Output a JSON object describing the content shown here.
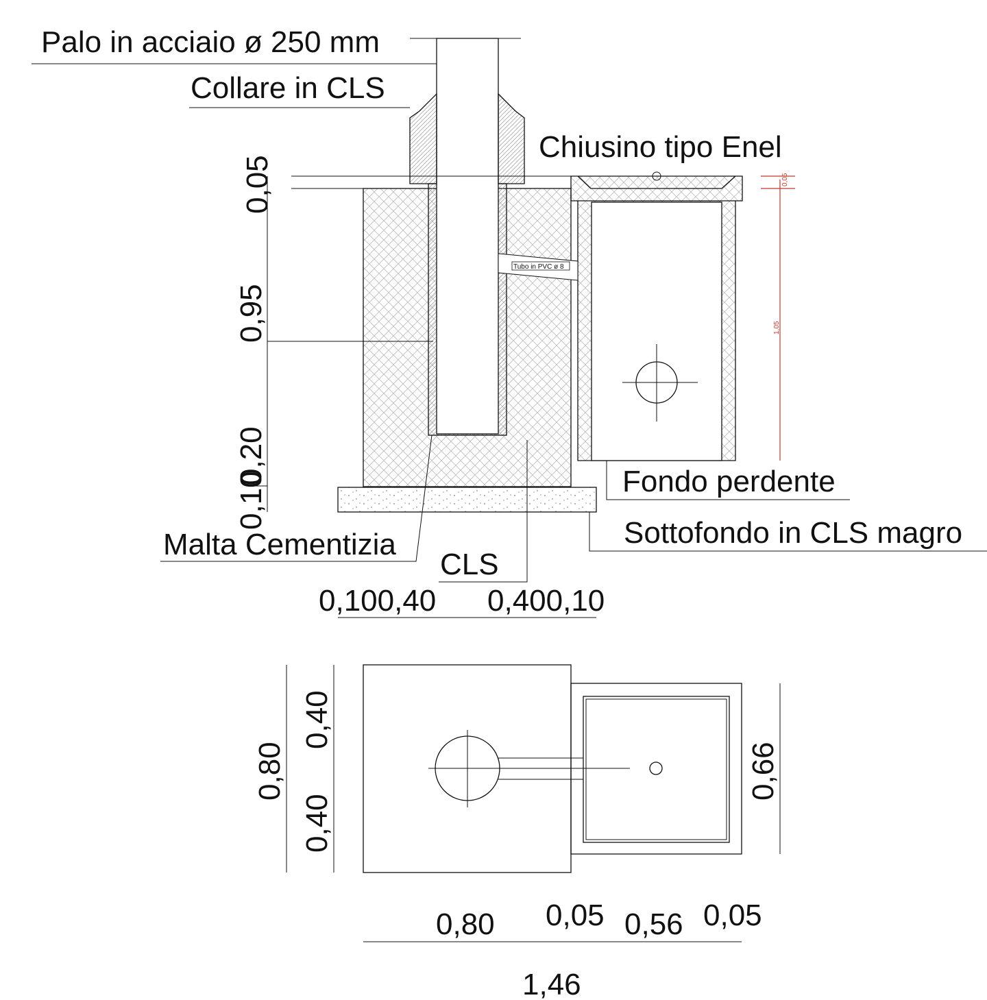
{
  "labels": {
    "palo": "Palo in acciaio ø 250 mm",
    "collare": "Collare in CLS",
    "chiusino": "Chiusino tipo Enel",
    "tubo": "Tubo in PVC  ø 8",
    "fondo": "Fondo perdente",
    "sottofondo": "Sottofondo in CLS magro",
    "malta": "Malta Cementizia",
    "cls": "CLS"
  },
  "section_dims": {
    "d_005": "0,05",
    "d_095": "0,95",
    "d_020": "0,20",
    "d_010": "0,10",
    "bottom_left": "0,100,40",
    "bottom_right": "0,400,10",
    "red_005": "0,05",
    "red_105": "1,05"
  },
  "plan_dims": {
    "d_080_v": "0,80",
    "d_040_top": "0,40",
    "d_040_bot": "0,40",
    "d_066": "0,66",
    "d_080_h": "0,80",
    "d_005_a": "0,05",
    "d_056": "0,56",
    "d_005_b": "0,05",
    "d_146": "1,46"
  },
  "colors": {
    "line": "#111111",
    "dimension_red": "#c0392b"
  }
}
